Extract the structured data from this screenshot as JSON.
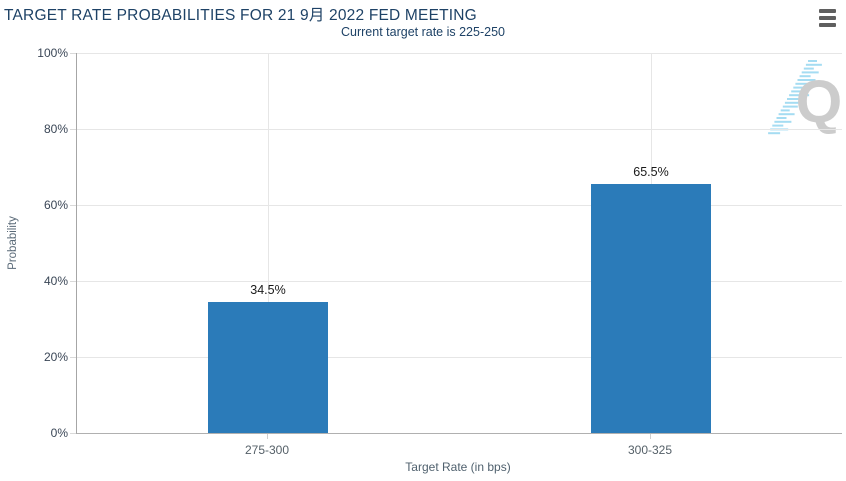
{
  "header": {
    "title": "TARGET RATE PROBABILITIES FOR 21 9月 2022 FED MEETING",
    "subtitle": "Current target rate is 225-250",
    "menu_icon": "hamburger-icon"
  },
  "chart_data": {
    "type": "bar",
    "categories": [
      "275-300",
      "300-325"
    ],
    "values": [
      34.5,
      65.5
    ],
    "data_labels": [
      "34.5%",
      "65.5%"
    ],
    "title": "TARGET RATE PROBABILITIES FOR 21 9月 2022 FED MEETING",
    "subtitle": "Current target rate is 225-250",
    "xlabel": "Target Rate (in bps)",
    "ylabel": "Probability",
    "ylim": [
      0,
      100
    ],
    "ytick_step": 20,
    "ytick_labels": [
      "0%",
      "20%",
      "40%",
      "60%",
      "80%",
      "100%"
    ],
    "grid": true,
    "legend": "none",
    "bar_color": "#2b7bb9"
  },
  "watermark": {
    "icon": "quikstrike-q-logo",
    "letter": "Q",
    "letter_color": "#cccccc",
    "dash_color": "#a5dcf2"
  },
  "colors": {
    "title_navy": "#1e4266",
    "bar_blue": "#2b7bb9",
    "gridline": "#e6e6e6",
    "axis_line": "#a6a6a6"
  }
}
